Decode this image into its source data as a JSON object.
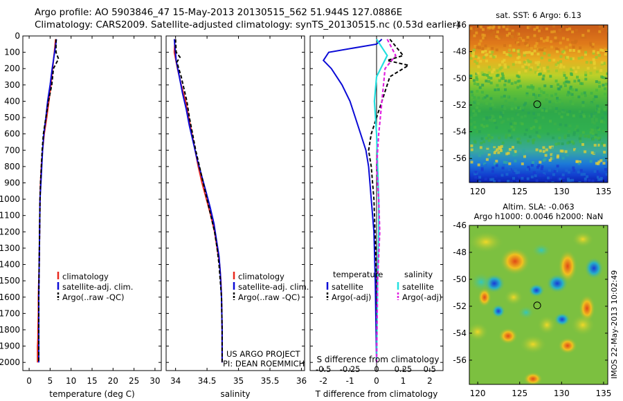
{
  "header": {
    "line1": "Argo profile: AO 5903846_47 15-May-2013 20130515_562 51.944S 127.0886E",
    "line2": "Climatology: CARS2009. Satellite-adjusted climatology: synTS_20130515.nc (0.53d earlier)"
  },
  "project": {
    "line1": "US ARGO PROJECT",
    "line2": "PI: DEAN ROEMMICH"
  },
  "watermark": "IMOS 22-May-2013 10:02:49",
  "colors": {
    "climatology": "#e8281e",
    "satellite": "#0a0ad6",
    "argo": "#000000",
    "satellite_s": "#22e0e0",
    "argo_s": "#e020e0"
  },
  "chart_data": [
    {
      "type": "line",
      "xlabel": "temperature (deg C)",
      "ylabel": "",
      "xlim": [
        -1.5,
        31.5
      ],
      "ylim": [
        2050,
        0
      ],
      "xticks": [
        "0",
        "5",
        "10",
        "15",
        "20",
        "25",
        "30"
      ],
      "xtick_values": [
        0,
        5,
        10,
        15,
        20,
        25,
        30
      ],
      "yticks": [
        "0",
        "100",
        "200",
        "300",
        "400",
        "500",
        "600",
        "700",
        "800",
        "900",
        "1000",
        "1100",
        "1200",
        "1300",
        "1400",
        "1500",
        "1600",
        "1700",
        "1800",
        "1900",
        "2000"
      ],
      "ytick_values": [
        0,
        100,
        200,
        300,
        400,
        500,
        600,
        700,
        800,
        900,
        1000,
        1100,
        1200,
        1300,
        1400,
        1500,
        1600,
        1700,
        1800,
        1900,
        2000
      ],
      "legend": [
        "climatology",
        "satellite-adj. clim.",
        "Argo(..raw -QC)"
      ],
      "series": [
        {
          "name": "climatology",
          "x": [
            6.3,
            6.0,
            5.6,
            5.2,
            4.7,
            4.2,
            3.6,
            3.2,
            2.9,
            2.7,
            2.6,
            2.5,
            2.4,
            2.3,
            2.2,
            2.2,
            2.1,
            2.1,
            2.0,
            2.0
          ],
          "y": [
            20,
            100,
            200,
            300,
            400,
            500,
            600,
            700,
            800,
            900,
            1000,
            1200,
            1400,
            1500,
            1600,
            1700,
            1800,
            1850,
            1900,
            2000
          ]
        },
        {
          "name": "satellite-adj. clim.",
          "x": [
            6.5,
            6.3,
            5.5,
            5.0,
            4.4,
            4.0,
            3.5,
            3.2,
            3.0,
            2.8,
            2.6,
            2.5,
            2.4,
            2.35,
            2.3,
            2.3,
            2.3,
            2.3,
            2.3
          ],
          "y": [
            20,
            60,
            200,
            300,
            400,
            500,
            600,
            700,
            800,
            900,
            1000,
            1200,
            1400,
            1500,
            1600,
            1700,
            1800,
            1900,
            2000
          ]
        },
        {
          "name": "Argo(..raw -QC)",
          "x": [
            6.4,
            6.4,
            7.0,
            5.8,
            5.4,
            4.6,
            4.0,
            3.4,
            3.1,
            2.9,
            2.7,
            2.6,
            2.5,
            2.4,
            2.35,
            2.3,
            2.3,
            2.3,
            2.3
          ],
          "y": [
            20,
            100,
            140,
            200,
            300,
            400,
            500,
            600,
            700,
            800,
            900,
            1000,
            1200,
            1400,
            1500,
            1600,
            1700,
            1800,
            2000
          ]
        }
      ]
    },
    {
      "type": "line",
      "xlabel": "salinity",
      "ylabel": "",
      "xlim": [
        33.85,
        36.05
      ],
      "ylim": [
        2050,
        0
      ],
      "xticks": [
        "34",
        "34.5",
        "35",
        "35.5",
        "36"
      ],
      "xtick_values": [
        34,
        34.5,
        35,
        35.5,
        36
      ],
      "legend": [
        "climatology",
        "satellite-adj. clim.",
        "Argo(..raw -QC)"
      ],
      "series": [
        {
          "name": "climatology",
          "x": [
            33.99,
            33.98,
            34.03,
            34.09,
            34.16,
            34.21,
            34.26,
            34.31,
            34.36,
            34.42,
            34.49,
            34.56,
            34.62,
            34.66,
            34.7,
            34.72,
            34.73,
            34.74,
            34.74
          ],
          "y": [
            20,
            100,
            200,
            300,
            400,
            500,
            600,
            700,
            800,
            900,
            1000,
            1100,
            1200,
            1300,
            1400,
            1500,
            1600,
            1800,
            2000
          ]
        },
        {
          "name": "satellite-adj. clim.",
          "x": [
            33.98,
            34.01,
            34.06,
            34.11,
            34.17,
            34.22,
            34.28,
            34.34,
            34.41,
            34.48,
            34.55,
            34.61,
            34.65,
            34.69,
            34.71,
            34.73,
            34.74,
            34.74
          ],
          "y": [
            20,
            150,
            250,
            350,
            450,
            550,
            650,
            750,
            850,
            950,
            1050,
            1150,
            1250,
            1350,
            1450,
            1600,
            1800,
            2000
          ]
        },
        {
          "name": "Argo(..raw -QC)",
          "x": [
            34.0,
            34.01,
            34.07,
            34.02,
            34.09,
            34.12,
            34.18,
            34.22,
            34.27,
            34.32,
            34.38,
            34.44,
            34.5,
            34.56,
            34.62,
            34.66,
            34.69,
            34.71,
            34.73,
            34.74,
            34.74
          ],
          "y": [
            20,
            100,
            130,
            160,
            250,
            300,
            400,
            500,
            600,
            700,
            800,
            900,
            1000,
            1100,
            1200,
            1300,
            1400,
            1500,
            1600,
            1800,
            2000
          ]
        }
      ]
    },
    {
      "type": "line",
      "xlabel": "T difference from climatology",
      "x2label": "S difference from climatology",
      "xlim": [
        -2.5,
        2.5
      ],
      "x2lim": [
        -0.625,
        0.625
      ],
      "ylim": [
        2050,
        0
      ],
      "xticks": [
        "-2",
        "-1",
        "0",
        "1",
        "2"
      ],
      "xtick_values": [
        -2,
        -1,
        0,
        1,
        2
      ],
      "x2ticks": [
        "-0.5",
        "-0.25",
        "0",
        "0.25",
        "0.5"
      ],
      "x2tick_values": [
        -0.5,
        -0.25,
        0,
        0.25,
        0.5
      ],
      "legend_temperature": [
        "temperature",
        "satellite",
        "Argo(-adj)"
      ],
      "legend_salinity": [
        "salinity",
        "satellite",
        "Argo(-adj)"
      ],
      "series": [
        {
          "name": "temperature satellite",
          "axis": "T",
          "x": [
            0.2,
            0.0,
            -1.8,
            -2.0,
            -1.7,
            -1.3,
            -1.0,
            -0.8,
            -0.6,
            -0.4,
            -0.3,
            -0.2,
            -0.1,
            -0.05,
            0.0
          ],
          "y": [
            20,
            50,
            100,
            150,
            200,
            300,
            400,
            500,
            600,
            700,
            800,
            1000,
            1200,
            1500,
            2000
          ]
        },
        {
          "name": "temperature Argo(-adj)",
          "x": [
            0.5,
            1.0,
            0.4,
            1.2,
            0.5,
            0.2,
            0.0,
            -0.2,
            -0.3,
            -0.2,
            -0.1,
            0.0,
            0.0
          ],
          "y": [
            20,
            120,
            150,
            180,
            250,
            400,
            500,
            600,
            700,
            800,
            1000,
            1500,
            2000
          ]
        },
        {
          "name": "salinity satellite",
          "axis": "S",
          "x": [
            0.0,
            0.1,
            0.0,
            -0.02,
            0.0,
            0.01,
            0.02,
            0.02,
            0.01,
            0.0
          ],
          "y": [
            20,
            120,
            250,
            400,
            600,
            800,
            1000,
            1200,
            1500,
            2000
          ]
        },
        {
          "name": "salinity Argo(-adj)",
          "axis": "S",
          "x": [
            0.1,
            0.18,
            0.08,
            0.05,
            0.02,
            0.0,
            0.02,
            0.03,
            0.01,
            0.0
          ],
          "y": [
            20,
            120,
            200,
            400,
            600,
            800,
            1000,
            1200,
            1500,
            2000
          ]
        }
      ]
    },
    {
      "type": "heatmap",
      "title": "sat. SST: 6 Argo: 6.13",
      "xlim": [
        119,
        135.5
      ],
      "ylim": [
        -57.8,
        -46
      ],
      "xticks": [
        "120",
        "125",
        "130",
        "135"
      ],
      "xtick_values": [
        120,
        125,
        130,
        135
      ],
      "yticks": [
        "-46",
        "-48",
        "-50",
        "-52",
        "-54",
        "-56"
      ],
      "ytick_values": [
        -46,
        -48,
        -50,
        -52,
        -54,
        -56
      ],
      "marker": {
        "lon": 127.09,
        "lat": -51.94
      }
    },
    {
      "type": "heatmap",
      "title_line1": "Altim. SLA: -0.063",
      "title_line2": "Argo h1000: 0.0046 h2000: NaN",
      "xlim": [
        119,
        135.5
      ],
      "ylim": [
        -57.8,
        -46
      ],
      "xticks": [
        "120",
        "125",
        "130",
        "135"
      ],
      "xtick_values": [
        120,
        125,
        130,
        135
      ],
      "yticks": [
        "-46",
        "-48",
        "-50",
        "-52",
        "-54",
        "-56"
      ],
      "ytick_values": [
        -46,
        -48,
        -50,
        -52,
        -54,
        -56
      ],
      "marker": {
        "lon": 127.09,
        "lat": -51.94
      }
    }
  ]
}
